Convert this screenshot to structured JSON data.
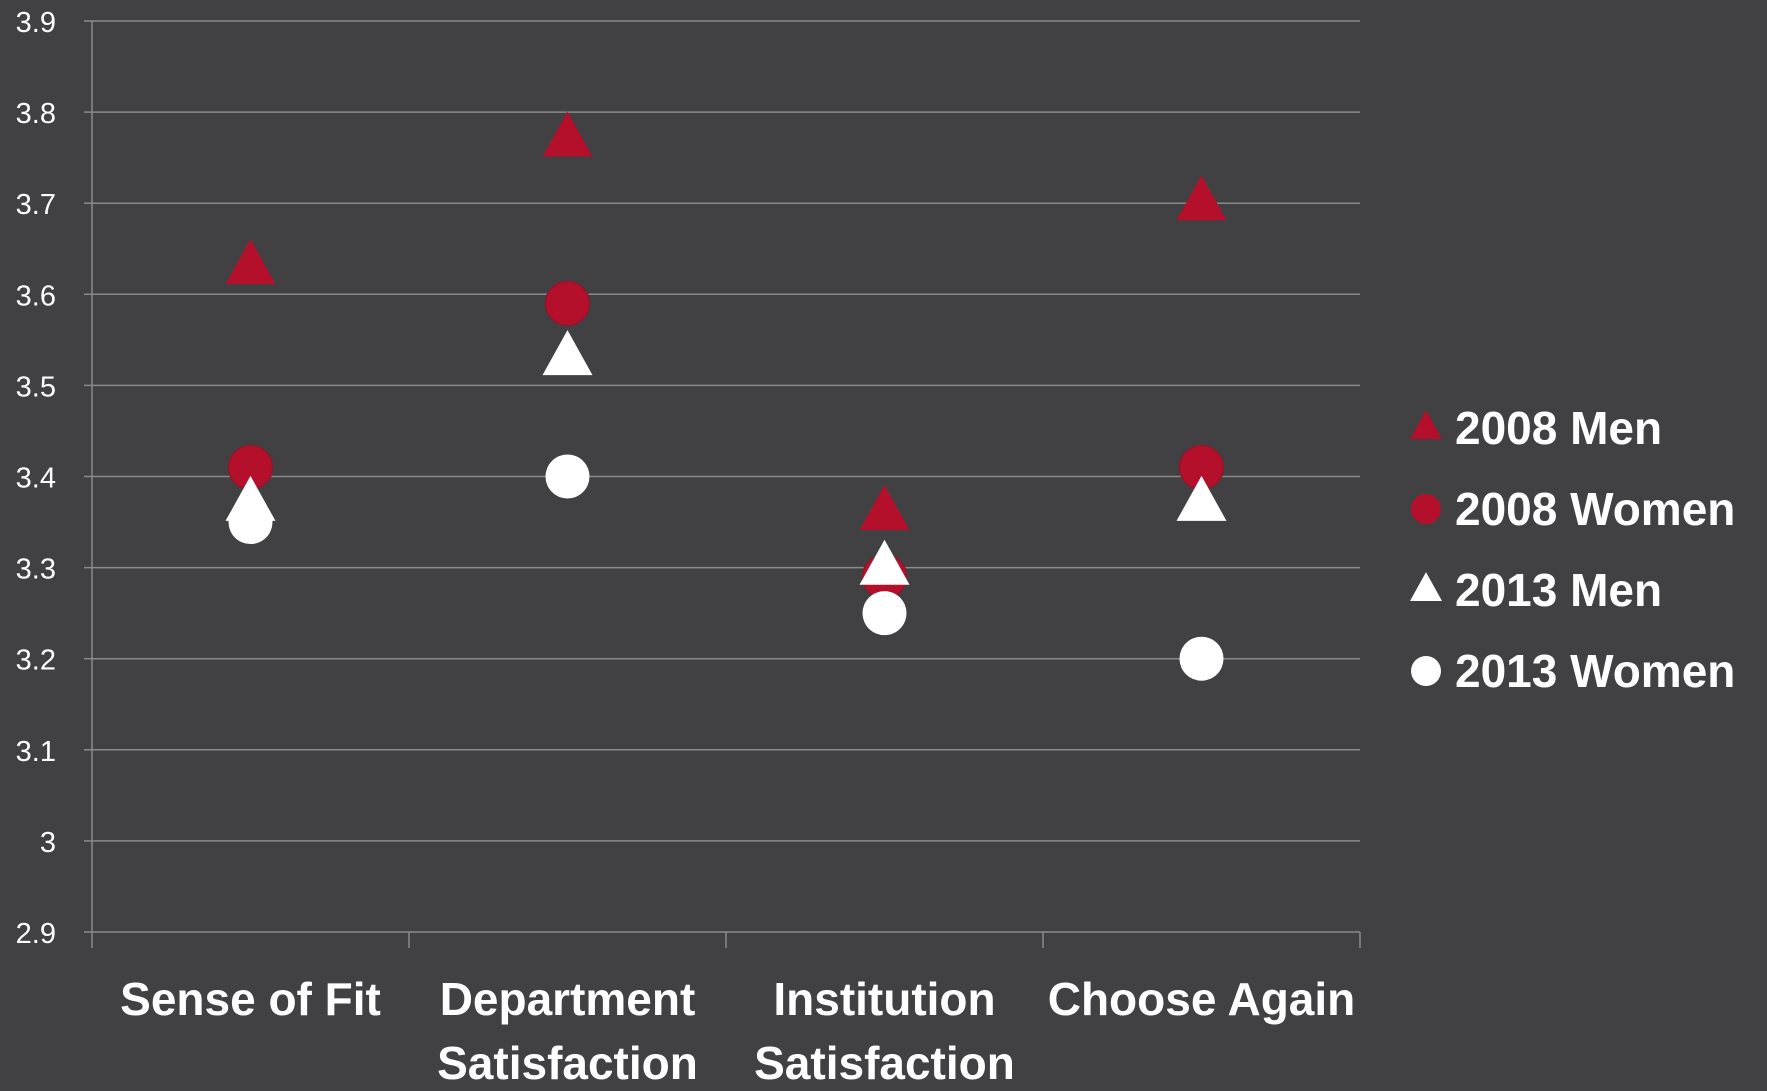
{
  "colors": {
    "background": "#414042",
    "axis": "#8a8a8a",
    "grid": "#8a8a8a",
    "tick_label": "#ffffff",
    "category_label": "#ffffff",
    "legend_text": "#ffffff",
    "red": "#b5102b",
    "white": "#ffffff"
  },
  "chart_data": {
    "type": "scatter",
    "title": "",
    "xlabel": "",
    "ylabel": "",
    "categories": [
      [
        "Sense of Fit"
      ],
      [
        "Department",
        "Satisfaction"
      ],
      [
        "Institution",
        "Satisfaction"
      ],
      [
        "Choose Again"
      ]
    ],
    "ylim": [
      2.9,
      3.9
    ],
    "yticks": [
      "3.9",
      "3.8",
      "3.7",
      "3.6",
      "3.5",
      "3.4",
      "3.3",
      "3.2",
      "3.1",
      "3",
      "2.9"
    ],
    "grid": true,
    "legend_position": "right",
    "series": [
      {
        "name": "2008 Men",
        "marker": "triangle",
        "color": "#b5102b",
        "values": [
          3.63,
          3.77,
          3.36,
          3.7
        ]
      },
      {
        "name": "2008 Women",
        "marker": "circle",
        "color": "#b5102b",
        "values": [
          3.41,
          3.59,
          3.29,
          3.41
        ]
      },
      {
        "name": "2013 Men",
        "marker": "triangle",
        "color": "#ffffff",
        "values": [
          3.37,
          3.53,
          3.3,
          3.37
        ]
      },
      {
        "name": "2013 Women",
        "marker": "circle",
        "color": "#ffffff",
        "values": [
          3.35,
          3.4,
          3.25,
          3.2
        ]
      }
    ]
  }
}
